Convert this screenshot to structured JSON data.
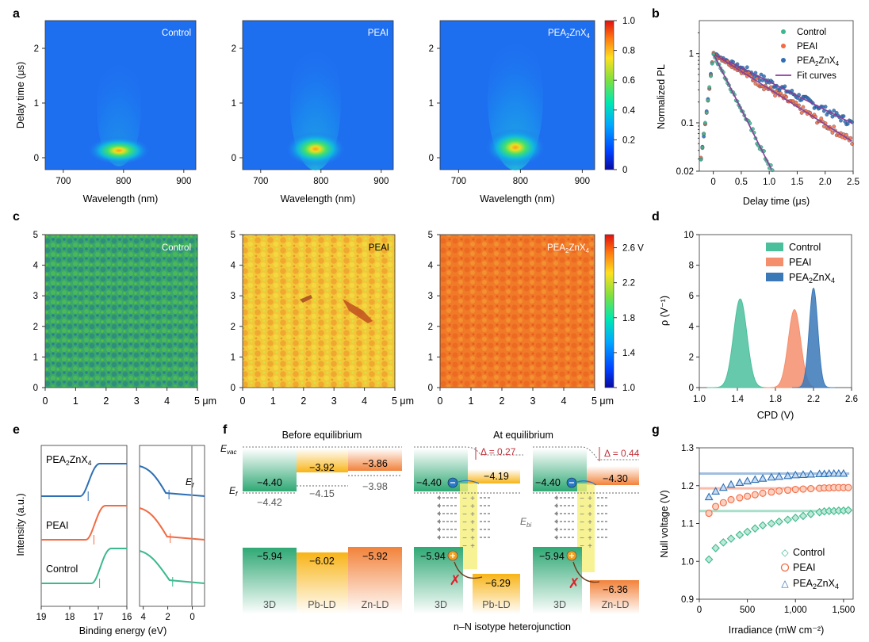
{
  "panel_labels": {
    "a": "a",
    "b": "b",
    "c": "c",
    "d": "d",
    "e": "e",
    "f": "f",
    "g": "g"
  },
  "samples": [
    "Control",
    "PEAI",
    "PEA2ZnX4"
  ],
  "panel_a": {
    "xlabel": "Wavelength (nm)",
    "ylabel": "Delay time (μs)",
    "xticks": [
      "700",
      "800",
      "900"
    ],
    "yticks": [
      "2",
      "1",
      "0"
    ],
    "colorbar_ticks": [
      "1.0",
      "0.8",
      "0.6",
      "0.4",
      "0.2",
      "0"
    ]
  },
  "panel_c": {
    "xticks": [
      "0",
      "1",
      "2",
      "3",
      "4",
      "5 μm"
    ],
    "yticks": [
      "5",
      "4",
      "3",
      "2",
      "1",
      "0"
    ],
    "colorbar_ticks": [
      "2.6 V",
      "2.2",
      "1.8",
      "1.4",
      "1.0"
    ]
  },
  "panel_f": {
    "before_title": "Before equilibrium",
    "after_title": "At equilibrium",
    "evac": "E",
    "evac_sub": "vac",
    "ef": "E",
    "ef_sub": "f",
    "ebi": "E",
    "ebi_sub": "bi",
    "before_levels": {
      "cb_3d": "−4.40",
      "cb_pb": "−3.92",
      "cb_zn": "−3.86",
      "ef_3d": "−4.42",
      "ef_pb": "−4.15",
      "ef_zn": "−3.98",
      "vb_3d": "−5.94",
      "vb_pb": "−6.02",
      "vb_zn": "−5.92"
    },
    "after_pb": {
      "cb_3d": "−4.40",
      "cb_ld": "−4.19",
      "vb_3d": "−5.94",
      "vb_ld": "−6.29",
      "delta": "Δ = 0.27"
    },
    "after_zn": {
      "cb_3d": "−4.40",
      "cb_ld": "−4.30",
      "vb_3d": "−5.94",
      "vb_ld": "−6.36",
      "delta": "Δ = 0.44"
    },
    "names": {
      "d3": "3D",
      "pb": "Pb-LD",
      "zn": "Zn-LD"
    },
    "caption": "n–N isotype heterojunction"
  },
  "chart_data": [
    {
      "panel": "b",
      "type": "scatter",
      "xlabel": "Delay time (μs)",
      "ylabel": "Normalized PL",
      "xlim": [
        -0.25,
        2.5
      ],
      "ylim": [
        0.02,
        3
      ],
      "yscale": "log",
      "xticks": [
        "0",
        "0.5",
        "1.0",
        "1.5",
        "2.0",
        "2.5"
      ],
      "yticks": [
        "1",
        "0.1",
        "0.02"
      ],
      "legend": [
        "Control",
        "PEAI",
        "PEA2ZnX4",
        "Fit curves"
      ],
      "series": [
        {
          "name": "Control",
          "color": "#3cb98c",
          "peak_x": 0,
          "decay_tau_us": 0.27,
          "end_x": 1.25
        },
        {
          "name": "PEAI",
          "color": "#f26b43",
          "peak_x": 0,
          "decay_tau_us": 0.85,
          "end_x": 2.5
        },
        {
          "name": "PEA2ZnX4",
          "color": "#2d6fb5",
          "peak_x": 0,
          "decay_tau_us": 1.07,
          "end_x": 2.5
        }
      ]
    },
    {
      "panel": "d",
      "type": "area",
      "xlabel": "CPD (V)",
      "ylabel": "ρ (V⁻¹)",
      "xlim": [
        1.0,
        2.6
      ],
      "ylim": [
        0,
        10
      ],
      "xticks": [
        "1.0",
        "1.4",
        "1.8",
        "2.2",
        "2.6"
      ],
      "yticks": [
        "10",
        "8",
        "6",
        "4",
        "2",
        "0"
      ],
      "legend": [
        "Control",
        "PEAI",
        "PEA2ZnX4"
      ],
      "series": [
        {
          "name": "Control",
          "color": "#4bbf9c",
          "center": 1.43,
          "peak": 5.8,
          "sigma": 0.07
        },
        {
          "name": "PEAI",
          "color": "#f58e6c",
          "center": 2.0,
          "peak": 5.1,
          "sigma": 0.065
        },
        {
          "name": "PEA2ZnX4",
          "color": "#3a78b8",
          "center": 2.2,
          "peak": 6.5,
          "sigma": 0.045
        }
      ]
    },
    {
      "panel": "e",
      "type": "line",
      "xlabel": "Binding energy (eV)",
      "ylabel": "Intensity (a.u.)",
      "xticks_left": [
        "19",
        "18",
        "17",
        "16"
      ],
      "xticks_right": [
        "4",
        "2",
        "0"
      ],
      "ef_label": "E",
      "ef_sub": "f",
      "series": [
        {
          "name": "PEA2ZnX4",
          "color": "#2d6fb5",
          "cutoff_eV": 17.3,
          "onset_eV": 1.9
        },
        {
          "name": "PEAI",
          "color": "#f26b43",
          "cutoff_eV": 17.1,
          "onset_eV": 1.8
        },
        {
          "name": "Control",
          "color": "#3cb98c",
          "cutoff_eV": 16.9,
          "onset_eV": 1.6
        }
      ]
    },
    {
      "panel": "g",
      "type": "scatter",
      "xlabel": "Irradiance (mW cm⁻²)",
      "ylabel": "Null voltage (V)",
      "xlim": [
        0,
        1600
      ],
      "ylim": [
        0.9,
        1.3
      ],
      "xticks": [
        "0",
        "500",
        "1,000",
        "1,500"
      ],
      "yticks": [
        "1.3",
        "1.2",
        "1.1",
        "1.0",
        "0.9"
      ],
      "legend": [
        "Control",
        "PEAI",
        "PEA2ZnX4"
      ],
      "series": [
        {
          "name": "Control",
          "color": "#3cb98c",
          "x": [
            100,
            170,
            250,
            330,
            420,
            500,
            580,
            660,
            750,
            830,
            920,
            1000,
            1080,
            1160,
            1250,
            1300,
            1350,
            1400,
            1450,
            1500,
            1550
          ],
          "y": [
            1.005,
            1.035,
            1.05,
            1.06,
            1.07,
            1.078,
            1.087,
            1.095,
            1.1,
            1.105,
            1.11,
            1.115,
            1.12,
            1.125,
            1.13,
            1.132,
            1.133,
            1.133,
            1.134,
            1.134,
            1.135
          ],
          "baseline": 1.133
        },
        {
          "name": "PEAI",
          "color": "#f26b43",
          "x": [
            100,
            170,
            250,
            330,
            420,
            500,
            580,
            660,
            750,
            830,
            920,
            1000,
            1080,
            1160,
            1250,
            1300,
            1350,
            1400,
            1450,
            1500,
            1550
          ],
          "y": [
            1.127,
            1.145,
            1.155,
            1.163,
            1.168,
            1.172,
            1.176,
            1.18,
            1.183,
            1.186,
            1.188,
            1.19,
            1.191,
            1.192,
            1.193,
            1.194,
            1.194,
            1.195,
            1.195,
            1.195,
            1.195
          ],
          "baseline": 1.193
        },
        {
          "name": "PEA2ZnX4",
          "color": "#2d6fb5",
          "x": [
            100,
            170,
            250,
            330,
            420,
            500,
            580,
            660,
            750,
            830,
            920,
            1000,
            1080,
            1160,
            1250,
            1300,
            1350,
            1400,
            1450,
            1500
          ],
          "y": [
            1.17,
            1.185,
            1.195,
            1.203,
            1.208,
            1.212,
            1.216,
            1.219,
            1.222,
            1.224,
            1.226,
            1.228,
            1.229,
            1.23,
            1.231,
            1.231,
            1.232,
            1.232,
            1.232,
            1.232
          ],
          "baseline": 1.232
        }
      ]
    }
  ]
}
